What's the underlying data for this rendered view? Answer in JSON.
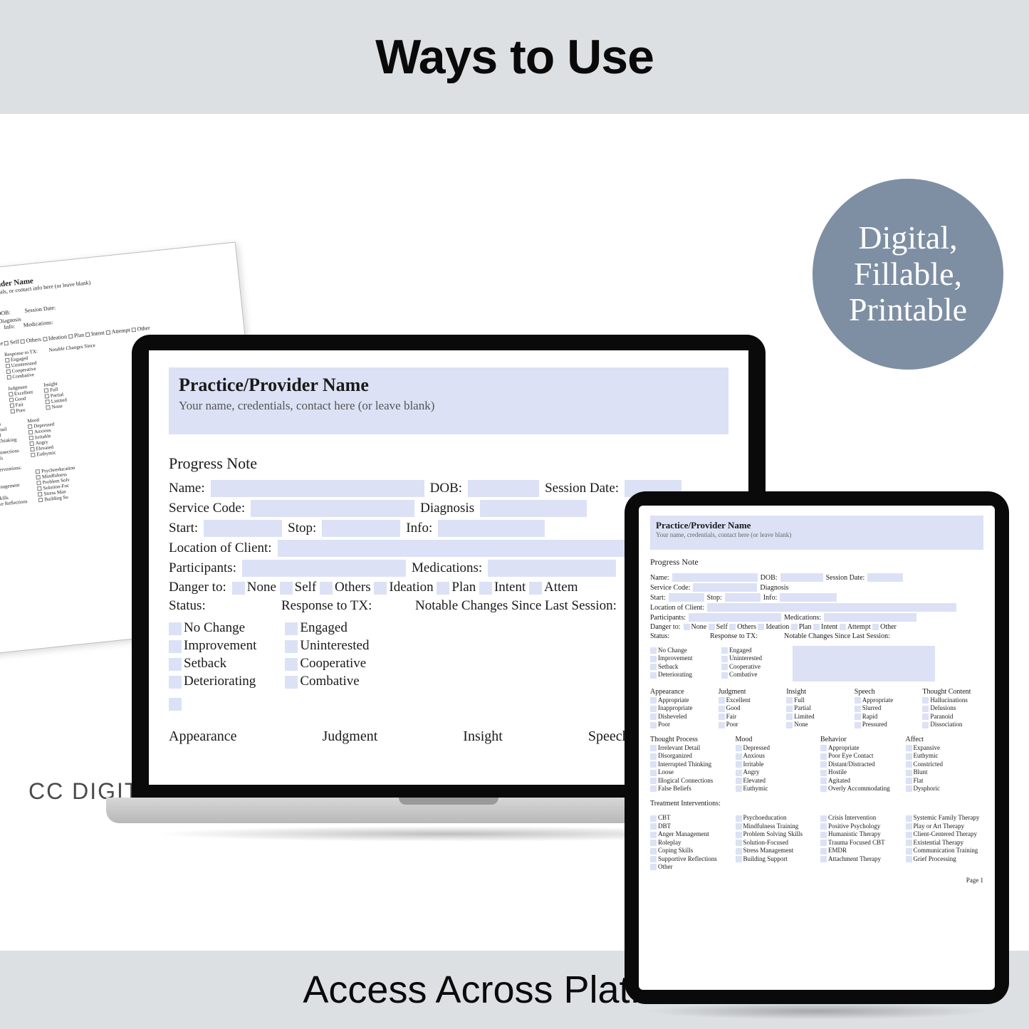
{
  "colors": {
    "banner_bg": "#dde0e3",
    "badge_bg": "#7e8fa3",
    "field_bg": "#dce1f5",
    "text": "#0a0a0a"
  },
  "top_title": "Ways to Use",
  "bottom_title": "Access Across Platforms",
  "studio": "CC DIGITAL STUDIOS",
  "badge": {
    "line1": "Digital,",
    "line2": "Fillable,",
    "line3": "Printable"
  },
  "form": {
    "header_title": "Practice/Provider Name",
    "header_sub_laptop": "Your name, credentials, contact here (or leave blank)",
    "header_sub_paper": "Your name, credentials, or contact info here (or leave blank)",
    "header_sub_tablet": "Your name, credentials, contact here (or leave blank)",
    "progress_note": "Progress Note",
    "labels": {
      "name": "Name:",
      "dob": "DOB:",
      "session_date": "Session Date:",
      "service_code": "Service Code:",
      "diagnosis_info": "Diagnosis Info:",
      "diagnosis": "Diagnosis",
      "info": "Info:",
      "start": "Start:",
      "stop": "Stop:",
      "location": "Location of Client:",
      "participants": "Participants:",
      "medications": "Medications:",
      "danger_to": "Danger to:",
      "status": "Status:",
      "response_tx": "Response to TX:",
      "notable_changes": "Notable Changes Since Last Session:",
      "treatment_interventions": "Treatment Interventions:",
      "page": "Page 1"
    },
    "danger_options": [
      "None",
      "Self",
      "Others",
      "Ideation",
      "Plan",
      "Intent",
      "Attempt",
      "Other"
    ],
    "status_options": [
      "No Change",
      "Improvement",
      "Setback",
      "Deteriorating"
    ],
    "response_options": [
      "Engaged",
      "Uninterested",
      "Cooperative",
      "Combative"
    ],
    "categories": [
      "Appearance",
      "Judgment",
      "Insight",
      "Speech",
      "Thought Content"
    ],
    "appearance": [
      "Appropriate",
      "Inappropriate",
      "Disheveled",
      "Poor"
    ],
    "judgment": [
      "Excellent",
      "Good",
      "Fair",
      "Poor"
    ],
    "insight": [
      "Full",
      "Partial",
      "Limited",
      "None"
    ],
    "speech": [
      "Appropriate",
      "Slurred",
      "Rapid",
      "Pressured"
    ],
    "thought_content": [
      "Hallucinations",
      "Delusions",
      "Paranoid",
      "Dissociation"
    ],
    "thought_process_h": "Thought Process",
    "mood_h": "Mood",
    "behavior_h": "Behavior",
    "affect_h": "Affect",
    "thought_process": [
      "Irrelevant Detail",
      "Disorganized",
      "Interrupted Thinking",
      "Loose",
      "Illogical Connections",
      "False Beliefs"
    ],
    "mood": [
      "Depressed",
      "Anxious",
      "Irritable",
      "Angry",
      "Elevated",
      "Euthymic"
    ],
    "behavior": [
      "Appropriate",
      "Poor Eye Contact",
      "Distant/Distracted",
      "Hostile",
      "Agitated",
      "Overly Accommodating"
    ],
    "affect": [
      "Expansive",
      "Euthymic",
      "Constricted",
      "Blunt",
      "Flat",
      "Dysphoric"
    ],
    "interventions_col1": [
      "CBT",
      "DBT",
      "Anger Management",
      "Roleplay",
      "Coping Skills",
      "Supportive Reflections",
      "Other"
    ],
    "interventions_col2": [
      "Psychoeducation",
      "Mindfulness Training",
      "Problem Solving Skills",
      "Solution-Focused",
      "Stress Management",
      "Building Support"
    ],
    "interventions_col3": [
      "Crisis Intervention",
      "Positive Psychology",
      "Humanistic Therapy",
      "Trauma Focused CBT",
      "EMDR",
      "Attachment Therapy"
    ],
    "interventions_col4": [
      "Systemic Family Therapy",
      "Play or Art Therapy",
      "Client-Centered Therapy",
      "Existential Therapy",
      "Communication Training",
      "Grief Processing"
    ]
  }
}
